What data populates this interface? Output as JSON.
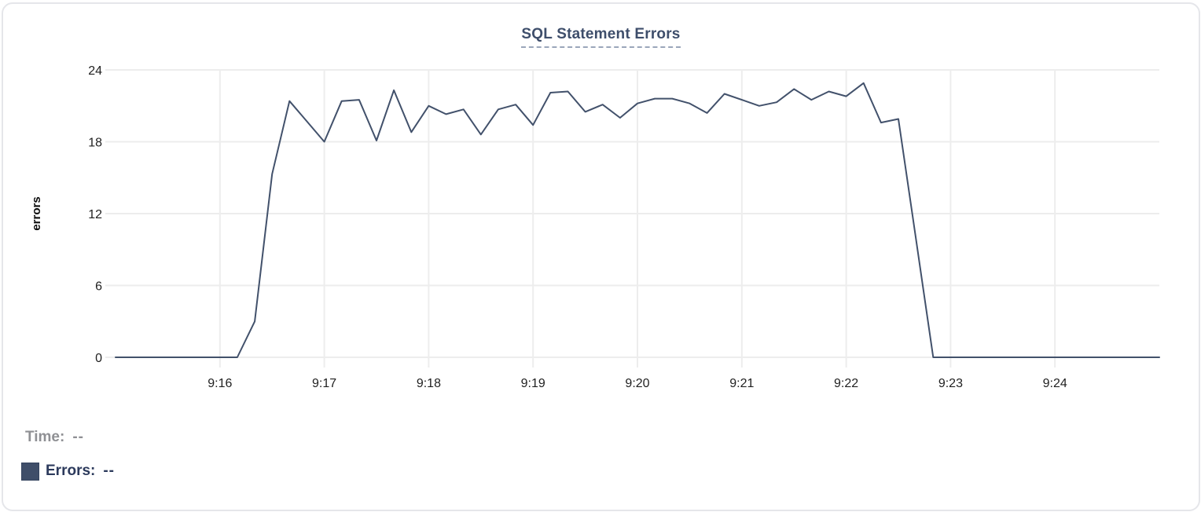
{
  "chart_data": {
    "type": "line",
    "title": "SQL Statement Errors",
    "ylabel": "errors",
    "y_ticks": [
      0,
      6,
      12,
      18,
      24
    ],
    "ylim": [
      0,
      24
    ],
    "x_tick_labels": [
      "9:16",
      "9:17",
      "9:18",
      "9:19",
      "9:20",
      "9:21",
      "9:22",
      "9:23",
      "9:24"
    ],
    "x_range": [
      "9:15:00",
      "9:25:00"
    ],
    "grid": true,
    "line_color": "#42516b",
    "grid_color": "#ededed",
    "legend_position": "bottom-left",
    "series": [
      {
        "name": "Errors",
        "times": [
          "9:15:00",
          "9:15:10",
          "9:15:20",
          "9:15:30",
          "9:15:40",
          "9:15:50",
          "9:16:00",
          "9:16:10",
          "9:16:20",
          "9:16:30",
          "9:16:40",
          "9:16:50",
          "9:17:00",
          "9:17:10",
          "9:17:20",
          "9:17:30",
          "9:17:40",
          "9:17:50",
          "9:18:00",
          "9:18:10",
          "9:18:20",
          "9:18:30",
          "9:18:40",
          "9:18:50",
          "9:19:00",
          "9:19:10",
          "9:19:20",
          "9:19:30",
          "9:19:40",
          "9:19:50",
          "9:20:00",
          "9:20:10",
          "9:20:20",
          "9:20:30",
          "9:20:40",
          "9:20:50",
          "9:21:00",
          "9:21:10",
          "9:21:20",
          "9:21:30",
          "9:21:40",
          "9:21:50",
          "9:22:00",
          "9:22:10",
          "9:22:20",
          "9:22:30",
          "9:22:40",
          "9:22:50",
          "9:23:00",
          "9:23:10",
          "9:23:20",
          "9:23:30",
          "9:23:40",
          "9:23:50",
          "9:24:00",
          "9:24:10",
          "9:24:20",
          "9:24:30",
          "9:24:40",
          "9:24:50",
          "9:25:00"
        ],
        "values": [
          0,
          0,
          0,
          0,
          0,
          0,
          0,
          0,
          3,
          15.3,
          21.4,
          19.7,
          18,
          21.4,
          21.5,
          18.1,
          22.3,
          18.8,
          21,
          20.3,
          20.7,
          18.6,
          20.7,
          21.1,
          19.4,
          22.1,
          22.2,
          20.5,
          21.1,
          20,
          21.2,
          21.6,
          21.6,
          21.2,
          20.4,
          22,
          21.5,
          21,
          21.3,
          22.4,
          21.5,
          22.2,
          21.8,
          22.9,
          19.6,
          19.9,
          10,
          0,
          0,
          0,
          0,
          0,
          0,
          0,
          0,
          0,
          0,
          0,
          0,
          0,
          0
        ]
      }
    ]
  },
  "legend": {
    "time_label": "Time:",
    "time_value": "--",
    "errors_label": "Errors:",
    "errors_value": "--",
    "swatch_color": "#3f4e69"
  }
}
